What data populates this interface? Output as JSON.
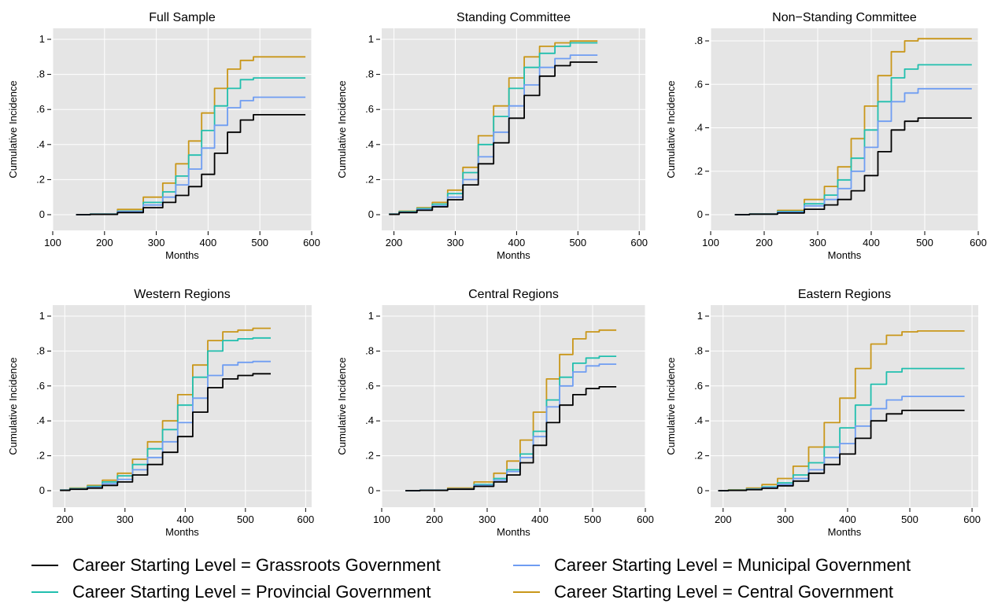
{
  "colors": {
    "panel_bg": "#e5e5e5",
    "grid": "#ffffff",
    "Grassroots": "#000000",
    "Municipal": "#6f9df2",
    "Provincial": "#21bfae",
    "Central": "#c9971a"
  },
  "legend": [
    {
      "key": "Grassroots",
      "label": "Career Starting Level = Grassroots Government"
    },
    {
      "key": "Municipal",
      "label": "Career Starting Level = Municipal Government"
    },
    {
      "key": "Provincial",
      "label": "Career Starting Level = Provincial Government"
    },
    {
      "key": "Central",
      "label": "Career Starting Level = Central Government"
    }
  ],
  "chart_data": [
    {
      "type": "line",
      "title": "Full Sample",
      "xlabel": "Months",
      "ylabel": "Cumulative Incidence",
      "xlim": [
        100,
        600
      ],
      "ylim": [
        0,
        1
      ],
      "xticks": [
        100,
        200,
        300,
        400,
        500,
        600
      ],
      "yticks": [
        0,
        0.2,
        0.4,
        0.6,
        0.8,
        1
      ],
      "ytick_labels": [
        "0",
        ".2",
        ".4",
        ".6",
        ".8",
        "1"
      ],
      "series": [
        {
          "key": "Central",
          "x": [
            145,
            200,
            250,
            300,
            325,
            350,
            375,
            400,
            425,
            450,
            475,
            500,
            525,
            588
          ],
          "values": [
            0,
            0.005,
            0.03,
            0.1,
            0.18,
            0.29,
            0.42,
            0.58,
            0.72,
            0.83,
            0.88,
            0.9,
            0.9,
            0.9
          ]
        },
        {
          "key": "Provincial",
          "x": [
            145,
            200,
            250,
            300,
            325,
            350,
            375,
            400,
            425,
            450,
            475,
            500,
            525,
            588
          ],
          "values": [
            0,
            0.004,
            0.02,
            0.07,
            0.13,
            0.22,
            0.34,
            0.48,
            0.62,
            0.72,
            0.77,
            0.78,
            0.78,
            0.78
          ]
        },
        {
          "key": "Municipal",
          "x": [
            145,
            200,
            250,
            300,
            325,
            350,
            375,
            400,
            425,
            450,
            475,
            500,
            525,
            588
          ],
          "values": [
            0,
            0.003,
            0.018,
            0.055,
            0.1,
            0.17,
            0.26,
            0.38,
            0.51,
            0.61,
            0.65,
            0.67,
            0.67,
            0.67
          ]
        },
        {
          "key": "Grassroots",
          "x": [
            145,
            200,
            250,
            300,
            325,
            350,
            375,
            400,
            425,
            450,
            475,
            500,
            525,
            588
          ],
          "values": [
            0,
            0.002,
            0.012,
            0.04,
            0.07,
            0.11,
            0.16,
            0.23,
            0.35,
            0.47,
            0.54,
            0.57,
            0.57,
            0.57
          ]
        }
      ]
    },
    {
      "type": "line",
      "title": "Standing Committee",
      "xlabel": "Months",
      "ylabel": "Cumulative Incidence",
      "xlim": [
        180,
        610
      ],
      "ylim": [
        0,
        1
      ],
      "xticks": [
        200,
        300,
        400,
        500,
        600
      ],
      "yticks": [
        0,
        0.2,
        0.4,
        0.6,
        0.8,
        1
      ],
      "ytick_labels": [
        "0",
        ".2",
        ".4",
        ".6",
        ".8",
        "1"
      ],
      "series": [
        {
          "key": "Central",
          "x": [
            192,
            225,
            250,
            275,
            300,
            325,
            350,
            375,
            400,
            425,
            450,
            475,
            500,
            532
          ],
          "values": [
            0.005,
            0.02,
            0.04,
            0.07,
            0.14,
            0.27,
            0.45,
            0.62,
            0.78,
            0.9,
            0.96,
            0.98,
            0.99,
            0.99
          ]
        },
        {
          "key": "Provincial",
          "x": [
            192,
            225,
            250,
            275,
            300,
            325,
            350,
            375,
            400,
            425,
            450,
            475,
            500,
            532
          ],
          "values": [
            0.004,
            0.017,
            0.035,
            0.06,
            0.12,
            0.24,
            0.4,
            0.56,
            0.72,
            0.84,
            0.92,
            0.96,
            0.98,
            0.98
          ]
        },
        {
          "key": "Municipal",
          "x": [
            192,
            225,
            250,
            275,
            300,
            325,
            350,
            375,
            400,
            425,
            450,
            475,
            500,
            532
          ],
          "values": [
            0.003,
            0.014,
            0.03,
            0.05,
            0.1,
            0.2,
            0.33,
            0.47,
            0.62,
            0.74,
            0.84,
            0.89,
            0.91,
            0.91
          ]
        },
        {
          "key": "Grassroots",
          "x": [
            192,
            225,
            250,
            275,
            300,
            325,
            350,
            375,
            400,
            425,
            450,
            475,
            500,
            532
          ],
          "values": [
            0.002,
            0.012,
            0.025,
            0.045,
            0.085,
            0.17,
            0.29,
            0.41,
            0.55,
            0.68,
            0.79,
            0.85,
            0.87,
            0.87
          ]
        }
      ]
    },
    {
      "type": "line",
      "title": "Non−Standing Committee",
      "xlabel": "Months",
      "ylabel": "Cumulative Incidence",
      "xlim": [
        100,
        600
      ],
      "ylim": [
        0,
        0.85
      ],
      "xticks": [
        100,
        200,
        300,
        400,
        500,
        600
      ],
      "yticks": [
        0,
        0.2,
        0.4,
        0.6,
        0.8
      ],
      "ytick_labels": [
        "0",
        ".2",
        ".4",
        ".6",
        ".8"
      ],
      "series": [
        {
          "key": "Central",
          "x": [
            145,
            200,
            250,
            300,
            325,
            350,
            375,
            400,
            425,
            450,
            475,
            500,
            525,
            588
          ],
          "values": [
            0,
            0.004,
            0.02,
            0.07,
            0.13,
            0.22,
            0.35,
            0.5,
            0.64,
            0.75,
            0.8,
            0.81,
            0.81,
            0.81
          ]
        },
        {
          "key": "Provincial",
          "x": [
            145,
            200,
            250,
            300,
            325,
            350,
            375,
            400,
            425,
            450,
            475,
            500,
            525,
            588
          ],
          "values": [
            0,
            0.003,
            0.015,
            0.05,
            0.09,
            0.16,
            0.26,
            0.39,
            0.52,
            0.63,
            0.67,
            0.69,
            0.69,
            0.69
          ]
        },
        {
          "key": "Municipal",
          "x": [
            145,
            200,
            250,
            300,
            325,
            350,
            375,
            400,
            425,
            450,
            475,
            500,
            525,
            588
          ],
          "values": [
            0,
            0.003,
            0.012,
            0.04,
            0.07,
            0.12,
            0.2,
            0.31,
            0.43,
            0.52,
            0.56,
            0.58,
            0.58,
            0.58
          ]
        },
        {
          "key": "Grassroots",
          "x": [
            145,
            200,
            250,
            300,
            325,
            350,
            375,
            400,
            425,
            450,
            475,
            500,
            525,
            588
          ],
          "values": [
            0,
            0.002,
            0.008,
            0.025,
            0.045,
            0.07,
            0.11,
            0.18,
            0.29,
            0.39,
            0.43,
            0.445,
            0.445,
            0.445
          ]
        }
      ]
    },
    {
      "type": "line",
      "title": "Western Regions",
      "xlabel": "Months",
      "ylabel": "Cumulative Incidence",
      "xlim": [
        180,
        610
      ],
      "ylim": [
        0,
        1
      ],
      "xticks": [
        200,
        300,
        400,
        500,
        600
      ],
      "yticks": [
        0,
        0.2,
        0.4,
        0.6,
        0.8,
        1
      ],
      "ytick_labels": [
        "0",
        ".2",
        ".4",
        ".6",
        ".8",
        "1"
      ],
      "series": [
        {
          "key": "Central",
          "x": [
            192,
            225,
            250,
            275,
            300,
            325,
            350,
            375,
            400,
            425,
            450,
            475,
            500,
            525,
            542
          ],
          "values": [
            0.005,
            0.015,
            0.03,
            0.06,
            0.1,
            0.18,
            0.28,
            0.4,
            0.55,
            0.72,
            0.86,
            0.91,
            0.92,
            0.93,
            0.93
          ]
        },
        {
          "key": "Provincial",
          "x": [
            192,
            225,
            250,
            275,
            300,
            325,
            350,
            375,
            400,
            425,
            450,
            475,
            500,
            525,
            542
          ],
          "values": [
            0.004,
            0.012,
            0.025,
            0.05,
            0.085,
            0.15,
            0.24,
            0.35,
            0.49,
            0.65,
            0.8,
            0.86,
            0.87,
            0.875,
            0.875
          ]
        },
        {
          "key": "Municipal",
          "x": [
            192,
            225,
            250,
            275,
            300,
            325,
            350,
            375,
            400,
            425,
            450,
            475,
            500,
            525,
            542
          ],
          "values": [
            0.003,
            0.01,
            0.02,
            0.04,
            0.065,
            0.12,
            0.19,
            0.28,
            0.39,
            0.53,
            0.66,
            0.72,
            0.735,
            0.74,
            0.74
          ]
        },
        {
          "key": "Grassroots",
          "x": [
            192,
            225,
            250,
            275,
            300,
            325,
            350,
            375,
            400,
            425,
            450,
            475,
            500,
            525,
            542
          ],
          "values": [
            0.002,
            0.008,
            0.015,
            0.03,
            0.05,
            0.09,
            0.15,
            0.22,
            0.31,
            0.45,
            0.59,
            0.64,
            0.66,
            0.67,
            0.67
          ]
        }
      ]
    },
    {
      "type": "line",
      "title": "Central Regions",
      "xlabel": "Months",
      "ylabel": "Cumulative Incidence",
      "xlim": [
        100,
        600
      ],
      "ylim": [
        0,
        1
      ],
      "xticks": [
        100,
        200,
        300,
        400,
        500,
        600
      ],
      "yticks": [
        0,
        0.2,
        0.4,
        0.6,
        0.8,
        1
      ],
      "ytick_labels": [
        "0",
        ".2",
        ".4",
        ".6",
        ".8",
        "1"
      ],
      "series": [
        {
          "key": "Central",
          "x": [
            145,
            200,
            250,
            300,
            325,
            350,
            375,
            400,
            425,
            450,
            475,
            500,
            525,
            545
          ],
          "values": [
            0,
            0.004,
            0.015,
            0.05,
            0.1,
            0.17,
            0.29,
            0.45,
            0.64,
            0.78,
            0.87,
            0.91,
            0.92,
            0.92
          ]
        },
        {
          "key": "Provincial",
          "x": [
            145,
            200,
            250,
            300,
            325,
            350,
            375,
            400,
            425,
            450,
            475,
            500,
            525,
            545
          ],
          "values": [
            0,
            0.003,
            0.01,
            0.035,
            0.07,
            0.12,
            0.21,
            0.34,
            0.52,
            0.65,
            0.73,
            0.76,
            0.77,
            0.77
          ]
        },
        {
          "key": "Municipal",
          "x": [
            145,
            200,
            250,
            300,
            325,
            350,
            375,
            400,
            425,
            450,
            475,
            500,
            525,
            545
          ],
          "values": [
            0,
            0.003,
            0.01,
            0.03,
            0.06,
            0.11,
            0.19,
            0.31,
            0.48,
            0.6,
            0.68,
            0.715,
            0.725,
            0.725
          ]
        },
        {
          "key": "Grassroots",
          "x": [
            145,
            200,
            250,
            300,
            325,
            350,
            375,
            400,
            425,
            450,
            475,
            500,
            525,
            545
          ],
          "values": [
            0,
            0.002,
            0.008,
            0.025,
            0.05,
            0.09,
            0.16,
            0.26,
            0.39,
            0.49,
            0.55,
            0.585,
            0.595,
            0.595
          ]
        }
      ]
    },
    {
      "type": "line",
      "title": "Eastern Regions",
      "xlabel": "Months",
      "ylabel": "Cumulative Incidence",
      "xlim": [
        180,
        610
      ],
      "ylim": [
        0,
        1
      ],
      "xticks": [
        200,
        300,
        400,
        500,
        600
      ],
      "yticks": [
        0,
        0.2,
        0.4,
        0.6,
        0.8,
        1
      ],
      "ytick_labels": [
        "0",
        ".2",
        ".4",
        ".6",
        ".8",
        "1"
      ],
      "series": [
        {
          "key": "Central",
          "x": [
            192,
            225,
            250,
            275,
            300,
            325,
            350,
            375,
            400,
            425,
            450,
            475,
            500,
            525,
            588
          ],
          "values": [
            0,
            0.005,
            0.015,
            0.035,
            0.07,
            0.14,
            0.25,
            0.39,
            0.53,
            0.7,
            0.84,
            0.89,
            0.91,
            0.915,
            0.915
          ]
        },
        {
          "key": "Provincial",
          "x": [
            192,
            225,
            250,
            275,
            300,
            325,
            350,
            375,
            400,
            425,
            450,
            475,
            500,
            525,
            588
          ],
          "values": [
            0,
            0.003,
            0.01,
            0.022,
            0.045,
            0.09,
            0.16,
            0.25,
            0.36,
            0.49,
            0.61,
            0.68,
            0.7,
            0.7,
            0.7
          ]
        },
        {
          "key": "Municipal",
          "x": [
            192,
            225,
            250,
            275,
            300,
            325,
            350,
            375,
            400,
            425,
            450,
            475,
            500,
            525,
            588
          ],
          "values": [
            0,
            0.002,
            0.008,
            0.018,
            0.035,
            0.07,
            0.12,
            0.19,
            0.27,
            0.37,
            0.47,
            0.52,
            0.54,
            0.54,
            0.54
          ]
        },
        {
          "key": "Grassroots",
          "x": [
            192,
            225,
            250,
            275,
            300,
            325,
            350,
            375,
            400,
            425,
            450,
            475,
            500,
            525,
            588
          ],
          "values": [
            0,
            0.002,
            0.006,
            0.014,
            0.028,
            0.055,
            0.1,
            0.15,
            0.21,
            0.3,
            0.4,
            0.44,
            0.46,
            0.46,
            0.46
          ]
        }
      ]
    }
  ]
}
